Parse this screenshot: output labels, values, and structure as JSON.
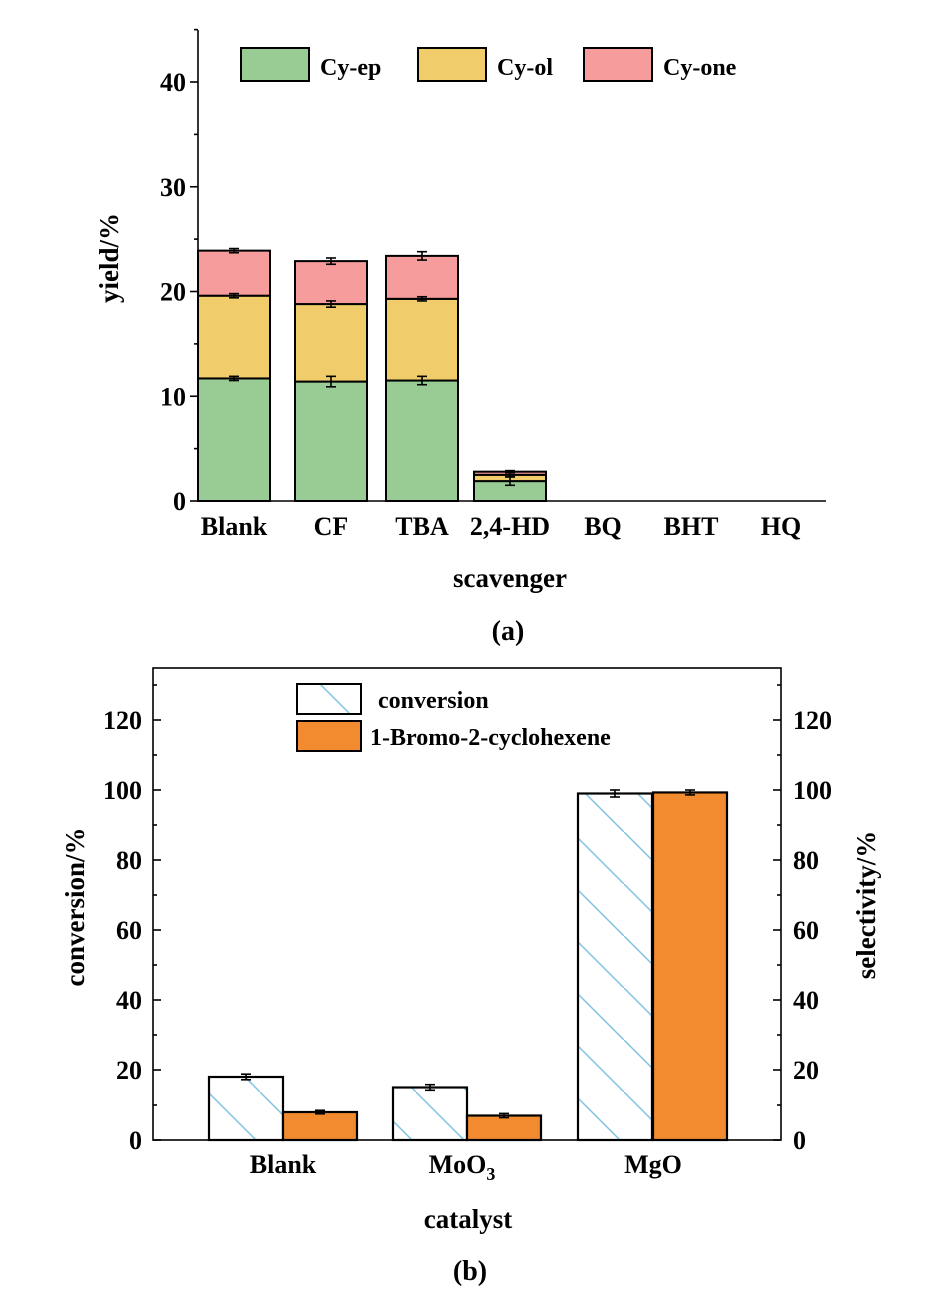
{
  "colors": {
    "cy_ep": "#98cc94",
    "cy_ol": "#f0cd6a",
    "cy_one": "#f79c9c",
    "conversion_hatch": "#88c6e6",
    "bromo": "#f28b30",
    "axis": "#000000"
  },
  "chart_data": [
    {
      "id": "a",
      "type": "bar",
      "stacked": true,
      "panel_label": "(a)",
      "xlabel": "scavenger",
      "ylabel": "yield/%",
      "ylim": [
        0,
        45
      ],
      "yticks": [
        0,
        10,
        20,
        30,
        40
      ],
      "legend_position": "top",
      "categories": [
        "Blank",
        "CF",
        "TBA",
        "2,4-HD",
        "BQ",
        "BHT",
        "HQ"
      ],
      "series": [
        {
          "name": "Cy-ep",
          "color": "#98cc94",
          "values": [
            11.7,
            11.4,
            11.5,
            1.9,
            0,
            0,
            0
          ],
          "errors": [
            0.2,
            0.5,
            0.4,
            0.4,
            0,
            0,
            0
          ]
        },
        {
          "name": "Cy-ol",
          "color": "#f0cd6a",
          "values": [
            7.9,
            7.4,
            7.8,
            0.6,
            0,
            0,
            0
          ],
          "errors": [
            0.2,
            0.3,
            0.2,
            0.2,
            0,
            0,
            0
          ]
        },
        {
          "name": "Cy-one",
          "color": "#f79c9c",
          "values": [
            4.3,
            4.1,
            4.1,
            0.3,
            0,
            0,
            0
          ],
          "errors": [
            0.2,
            0.3,
            0.4,
            0.1,
            0,
            0,
            0
          ]
        }
      ]
    },
    {
      "id": "b",
      "type": "bar",
      "grouped": true,
      "panel_label": "(b)",
      "xlabel": "catalyst",
      "ylabel": "conversion/%",
      "ylabel_right": "selectivity/%",
      "ylim": [
        0,
        135
      ],
      "yticks": [
        0,
        20,
        40,
        60,
        80,
        100,
        120
      ],
      "legend_position": "top-center",
      "categories": [
        "Blank",
        "MoO",
        "MgO"
      ],
      "category_subscripts": [
        "",
        "3",
        ""
      ],
      "series": [
        {
          "name": "conversion",
          "axis": "left",
          "pattern": "hatch",
          "values": [
            18,
            15,
            99
          ],
          "errors": [
            0.8,
            0.8,
            1.0
          ]
        },
        {
          "name": "1-Bromo-2-cyclohexene",
          "axis": "right",
          "color": "#f28b30",
          "values": [
            8,
            7,
            99.3
          ],
          "errors": [
            0.5,
            0.6,
            0.7
          ]
        }
      ]
    }
  ]
}
